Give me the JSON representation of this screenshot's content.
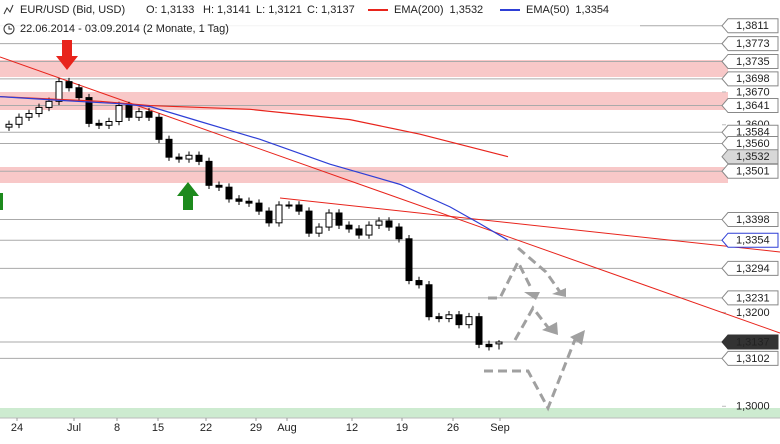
{
  "header": {
    "symbol": "EUR/USD (Bid, USD)",
    "ohlc": [
      "O: 1,3133",
      "H: 1,3141",
      "L: 1,3121",
      "C: 1,3137"
    ],
    "range": "22.06.2014 - 03.09.2014 (2 Monate, 1 Tag)"
  },
  "chart_data": {
    "type": "candlestick",
    "xlim": [
      -0.9,
      77.1
    ],
    "ylim": [
      1.2975,
      1.3866
    ],
    "up_color": "#ffffff",
    "down_color": "#000000",
    "open": [
      1.3595,
      1.3601,
      1.3616,
      1.3624,
      1.3637,
      1.365,
      1.3692,
      1.3679,
      1.3658,
      1.3603,
      1.3599,
      1.3607,
      1.3641,
      1.3616,
      1.3628,
      1.3616,
      1.3569,
      1.3531,
      1.3527,
      1.3535,
      1.3522,
      1.3471,
      1.3467,
      1.3442,
      1.3437,
      1.3433,
      1.3416,
      1.3391,
      1.3429,
      1.3429,
      1.3416,
      1.3369,
      1.3382,
      1.3412,
      1.3386,
      1.3378,
      1.3365,
      1.3386,
      1.3395,
      1.3382,
      1.3357,
      1.3268,
      1.3259,
      1.3191,
      1.3187,
      1.3195,
      1.3174,
      1.3191,
      1.3132,
      1.3133
    ],
    "high": [
      1.3609,
      1.3624,
      1.3632,
      1.3645,
      1.3658,
      1.37,
      1.37,
      1.3687,
      1.3666,
      1.3611,
      1.3615,
      1.3649,
      1.3649,
      1.3636,
      1.3636,
      1.3624,
      1.3577,
      1.3539,
      1.3543,
      1.3543,
      1.353,
      1.3479,
      1.3475,
      1.345,
      1.3445,
      1.3441,
      1.3424,
      1.3437,
      1.3437,
      1.3437,
      1.3424,
      1.339,
      1.342,
      1.342,
      1.3394,
      1.3386,
      1.3394,
      1.3403,
      1.3403,
      1.339,
      1.3365,
      1.3276,
      1.3267,
      1.3199,
      1.3203,
      1.3203,
      1.3199,
      1.3199,
      1.314,
      1.3141
    ],
    "low": [
      1.3587,
      1.3593,
      1.3608,
      1.3616,
      1.3629,
      1.3642,
      1.3671,
      1.365,
      1.3595,
      1.3591,
      1.3591,
      1.3599,
      1.3608,
      1.3608,
      1.3608,
      1.3561,
      1.3523,
      1.3519,
      1.3519,
      1.3514,
      1.3463,
      1.3459,
      1.3434,
      1.3429,
      1.3425,
      1.3408,
      1.3383,
      1.3383,
      1.3421,
      1.3408,
      1.3361,
      1.3361,
      1.3374,
      1.3378,
      1.337,
      1.3357,
      1.3357,
      1.3378,
      1.3374,
      1.3349,
      1.326,
      1.3251,
      1.3183,
      1.3179,
      1.3179,
      1.3166,
      1.3166,
      1.3124,
      1.3119,
      1.3121
    ],
    "close": [
      1.3601,
      1.3616,
      1.3624,
      1.3637,
      1.365,
      1.3692,
      1.3679,
      1.3658,
      1.3603,
      1.3599,
      1.3607,
      1.3641,
      1.3616,
      1.3628,
      1.3616,
      1.3569,
      1.3531,
      1.3527,
      1.3535,
      1.3522,
      1.3471,
      1.3467,
      1.3442,
      1.3437,
      1.3433,
      1.3416,
      1.3391,
      1.3429,
      1.3429,
      1.3416,
      1.3369,
      1.3382,
      1.3412,
      1.3386,
      1.3378,
      1.3365,
      1.3386,
      1.3395,
      1.3382,
      1.3357,
      1.3268,
      1.3259,
      1.3191,
      1.3187,
      1.3195,
      1.3174,
      1.3191,
      1.3132,
      1.3127,
      1.3137
    ],
    "series": [
      {
        "name": "EMA(200)",
        "last": "1,3532",
        "color": "#e8241c",
        "x": [
          -0.9,
          9.1,
          14.1,
          24.1,
          34.1,
          41.1,
          49.9
        ],
        "values": [
          1.366,
          1.365,
          1.3641,
          1.3633,
          1.3611,
          1.358,
          1.3532
        ]
      },
      {
        "name": "EMA(50)",
        "last": "1,3354",
        "color": "#2e3fd6",
        "x": [
          -0.9,
          5.1,
          11.1,
          14.1,
          19.1,
          25.1,
          32.1,
          39.1,
          44.1,
          47.1,
          49.9
        ],
        "values": [
          1.366,
          1.3652,
          1.3645,
          1.3639,
          1.3607,
          1.3569,
          1.3516,
          1.3473,
          1.3425,
          1.3389,
          1.3354
        ]
      }
    ],
    "yticks": [
      {
        "value": 1.3811,
        "label": "1,3811",
        "style": "box"
      },
      {
        "value": 1.3773,
        "label": "1,3773",
        "style": "box"
      },
      {
        "value": 1.3735,
        "label": "1,3735",
        "style": "box"
      },
      {
        "value": 1.3698,
        "label": "1,3698",
        "style": "box"
      },
      {
        "value": 1.367,
        "label": "1,3670",
        "style": "plain"
      },
      {
        "value": 1.3641,
        "label": "1,3641",
        "style": "box"
      },
      {
        "value": 1.36,
        "label": "1,3600",
        "style": "plain"
      },
      {
        "value": 1.3584,
        "label": "1,3584",
        "style": "box"
      },
      {
        "value": 1.356,
        "label": "1,3560",
        "style": "box"
      },
      {
        "value": 1.3532,
        "label": "1,3532",
        "style": "grey"
      },
      {
        "value": 1.3501,
        "label": "1,3501",
        "style": "box"
      },
      {
        "value": 1.3398,
        "label": "1,3398",
        "style": "box"
      },
      {
        "value": 1.3354,
        "label": "1,3354",
        "style": "blue"
      },
      {
        "value": 1.3294,
        "label": "1,3294",
        "style": "box"
      },
      {
        "value": 1.3231,
        "label": "1,3231",
        "style": "box"
      },
      {
        "value": 1.32,
        "label": "1,3200",
        "style": "plain"
      },
      {
        "value": 1.3137,
        "label": "1,3137",
        "style": "dark"
      },
      {
        "value": 1.3102,
        "label": "1,3102",
        "style": "box"
      },
      {
        "value": 1.3,
        "label": "1,3000",
        "style": "plain"
      }
    ],
    "xticks": [
      {
        "value": 0.8,
        "label": "24"
      },
      {
        "value": 6.5,
        "label": "Jul"
      },
      {
        "value": 10.8,
        "label": "8"
      },
      {
        "value": 14.9,
        "label": "15"
      },
      {
        "value": 19.7,
        "label": "22"
      },
      {
        "value": 24.7,
        "label": "29"
      },
      {
        "value": 27.8,
        "label": "Aug"
      },
      {
        "value": 34.3,
        "label": "12"
      },
      {
        "value": 39.3,
        "label": "19"
      },
      {
        "value": 44.4,
        "label": "26"
      },
      {
        "value": 49.1,
        "label": "Sep"
      }
    ]
  }
}
